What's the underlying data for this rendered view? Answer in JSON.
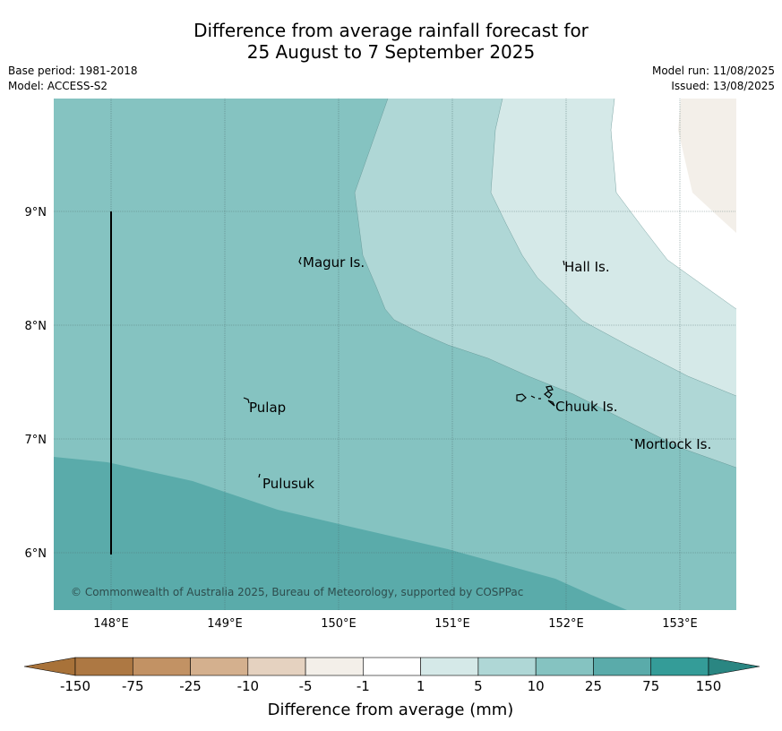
{
  "title_line1": "Difference from average rainfall forecast for",
  "title_line2": "25 August to 7 September 2025",
  "base_period": "Base period: 1981-2018",
  "model": "Model: ACCESS-S2",
  "model_run": "Model run: 11/08/2025",
  "issued": "Issued: 13/08/2025",
  "copyright": "© Commonwealth of Australia 2025, Bureau of Meteorology, supported by COSPPac",
  "lat_labels": [
    "9°N",
    "8°N",
    "7°N",
    "6°N"
  ],
  "lon_labels": [
    "148°E",
    "149°E",
    "150°E",
    "151°E",
    "152°E",
    "153°E"
  ],
  "places": [
    "Magur Is.",
    "Hall Is.",
    "Pulap",
    "Chuuk Is.",
    "Mortlock Is.",
    "Pulusuk"
  ],
  "colorbar": {
    "title": "Difference from average (mm)",
    "labels": [
      "-150",
      "-75",
      "-25",
      "-10",
      "-5",
      "-1",
      "1",
      "5",
      "10",
      "25",
      "75",
      "150"
    ],
    "colors": [
      "#a87239",
      "#ad7843",
      "#c29264",
      "#d4b08e",
      "#e5d2c0",
      "#f3efe9",
      "#ffffff",
      "#d5e9e8",
      "#afd7d6",
      "#85c3c1",
      "#5aabaa",
      "#349c98",
      "#2a8682"
    ]
  }
}
